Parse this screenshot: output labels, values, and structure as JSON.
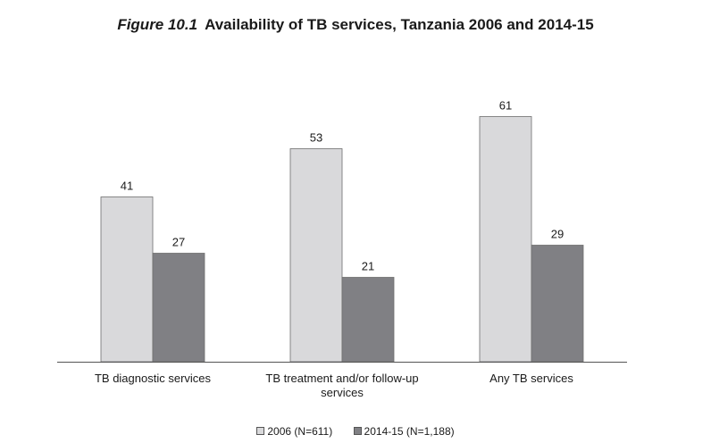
{
  "chart_data": {
    "type": "bar",
    "title_prefix": "Figure 10.1",
    "title": "Availability of TB services, Tanzania 2006 and 2014-15",
    "xlabel": "",
    "ylabel": "",
    "categories": [
      [
        "TB diagnostic services"
      ],
      [
        "TB treatment and/or follow-up",
        "services"
      ],
      [
        "Any TB services"
      ]
    ],
    "series": [
      {
        "name": "2006 (N=611)",
        "values": [
          41,
          53,
          61
        ],
        "color": "#d9d9db"
      },
      {
        "name": "2014-15 (N=1,188)",
        "values": [
          27,
          21,
          29
        ],
        "color": "#808084"
      }
    ],
    "ylim": [
      0,
      70
    ],
    "grid": false,
    "legend_position": "bottom-center"
  }
}
